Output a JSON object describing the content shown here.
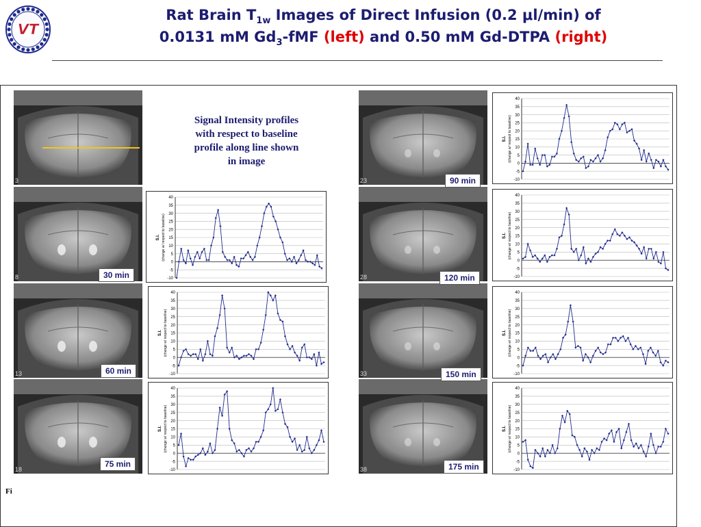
{
  "header": {
    "title_line1_pre": "Rat Brain T",
    "title_line1_sub": "1w",
    "title_line1_post": " Images of Direct Infusion (0.2 μl/min) of",
    "title_line2_a": "0.0131 mM Gd",
    "title_line2_sub": "3",
    "title_line2_b": "-fMF ",
    "title_line2_left": "(left)",
    "title_line2_c": " and 0.50 mM Gd-DTPA ",
    "title_line2_right": "(right)",
    "logo_text": "VT"
  },
  "description": "Signal Intensity profiles with respect to baseline profile along line shown in image",
  "figure_caption_prefix": "Fi",
  "colors": {
    "title": "#1c1c70",
    "accent_red": "#e00000",
    "series": "#1f2a8c",
    "profile_line": "#f5c518"
  },
  "left_images": [
    {
      "slice": "3",
      "time": ""
    },
    {
      "slice": "8",
      "time": "30 min"
    },
    {
      "slice": "13",
      "time": "60 min"
    },
    {
      "slice": "18",
      "time": "75 min"
    }
  ],
  "right_images": [
    {
      "slice": "23",
      "time": "90 min"
    },
    {
      "slice": "28",
      "time": "120 min"
    },
    {
      "slice": "33",
      "time": "150 min"
    },
    {
      "slice": "38",
      "time": "175 min"
    }
  ],
  "chart_data": [
    {
      "type": "line",
      "time": "30 min",
      "ylabel": "S.I.",
      "ylabel2": "(change w/ respect to baseline)",
      "ylim": [
        -10,
        40
      ],
      "yticks": [
        40,
        35,
        30,
        25,
        20,
        15,
        10,
        5,
        0,
        -5,
        -10
      ],
      "values": [
        -10,
        0,
        8,
        1,
        -1,
        7,
        2,
        -2,
        3,
        6,
        2,
        6,
        8,
        1,
        1,
        10,
        15,
        27,
        32,
        22,
        6,
        3,
        1,
        1,
        -1,
        3,
        -2,
        -3,
        2,
        2,
        4,
        6,
        3,
        1,
        3,
        10,
        15,
        22,
        30,
        34,
        36,
        34,
        28,
        25,
        20,
        15,
        12,
        5,
        1,
        2,
        0,
        3,
        -1,
        1,
        4,
        7,
        1,
        0,
        0,
        -1,
        -2,
        4,
        -3,
        -4
      ]
    },
    {
      "type": "line",
      "time": "60 min",
      "ylabel": "S.I.",
      "ylabel2": "(change w/ respect to baseline)",
      "ylim": [
        -10,
        40
      ],
      "yticks": [
        40,
        35,
        30,
        25,
        20,
        15,
        10,
        5,
        0,
        -5,
        -10
      ],
      "values": [
        -5,
        0,
        4,
        5,
        2,
        1,
        2,
        2,
        -1,
        5,
        -2,
        2,
        10,
        2,
        1,
        13,
        18,
        26,
        38,
        30,
        6,
        3,
        6,
        0,
        1,
        -1,
        0,
        1,
        1,
        2,
        1,
        -1,
        5,
        5,
        9,
        17,
        26,
        40,
        38,
        35,
        38,
        27,
        23,
        22,
        13,
        8,
        5,
        7,
        3,
        1,
        -2,
        6,
        8,
        0,
        0,
        -1,
        2,
        -5,
        3,
        -4,
        -3
      ]
    },
    {
      "type": "line",
      "time": "75 min",
      "ylabel": "S.I.",
      "ylabel2": "(change w/ respect to baseline)",
      "ylim": [
        -10,
        40
      ],
      "yticks": [
        40,
        35,
        30,
        25,
        20,
        15,
        10,
        5,
        0,
        -5,
        -10
      ],
      "values": [
        5,
        12,
        -2,
        -8,
        -3,
        -4,
        -4,
        -2,
        -1,
        0,
        3,
        -1,
        1,
        6,
        0,
        2,
        15,
        28,
        23,
        36,
        38,
        15,
        8,
        6,
        1,
        2,
        0,
        -2,
        2,
        3,
        1,
        3,
        7,
        7,
        10,
        14,
        25,
        27,
        30,
        40,
        26,
        27,
        33,
        25,
        18,
        16,
        10,
        7,
        9,
        2,
        5,
        1,
        2,
        10,
        3,
        0,
        2,
        5,
        8,
        14,
        7
      ]
    },
    {
      "type": "line",
      "time": "90 min",
      "ylabel": "S.I.",
      "ylabel2": "(change w/ respect to baseline)",
      "ylim": [
        -10,
        40
      ],
      "yticks": [
        40,
        35,
        30,
        25,
        20,
        15,
        10,
        5,
        0,
        -5,
        -10
      ],
      "values": [
        -5,
        1,
        12,
        -1,
        -1,
        9,
        3,
        -1,
        5,
        5,
        -2,
        -1,
        4,
        4,
        6,
        15,
        20,
        28,
        36,
        29,
        13,
        6,
        2,
        1,
        3,
        4,
        -3,
        -2,
        2,
        1,
        3,
        5,
        1,
        3,
        8,
        16,
        20,
        21,
        25,
        24,
        21,
        24,
        25,
        19,
        20,
        21,
        14,
        12,
        9,
        2,
        8,
        1,
        6,
        2,
        -3,
        2,
        1,
        -2,
        2,
        -2,
        -4
      ]
    },
    {
      "type": "line",
      "time": "120 min",
      "ylabel": "S.I.",
      "ylabel2": "(change w/ respect to baseline)",
      "ylim": [
        -10,
        40
      ],
      "yticks": [
        40,
        35,
        30,
        25,
        20,
        15,
        10,
        5,
        0,
        -5,
        -10
      ],
      "values": [
        1,
        2,
        10,
        6,
        2,
        3,
        1,
        -1,
        1,
        3,
        -1,
        2,
        3,
        3,
        7,
        14,
        15,
        22,
        32,
        28,
        7,
        5,
        7,
        0,
        3,
        8,
        -2,
        1,
        -1,
        2,
        4,
        5,
        8,
        7,
        10,
        12,
        12,
        16,
        19,
        16,
        15,
        17,
        15,
        13,
        14,
        12,
        11,
        9,
        7,
        4,
        8,
        1,
        7,
        7,
        1,
        5,
        -1,
        -2,
        5,
        -5,
        -6
      ]
    },
    {
      "type": "line",
      "time": "150 min",
      "ylabel": "S.I.",
      "ylabel2": "(change w/ respect to baseline)",
      "ylim": [
        -10,
        40
      ],
      "yticks": [
        40,
        35,
        30,
        25,
        20,
        15,
        10,
        5,
        0,
        -5,
        -10
      ],
      "values": [
        -5,
        1,
        6,
        4,
        4,
        6,
        1,
        -1,
        1,
        2,
        -3,
        0,
        2,
        -1,
        2,
        5,
        12,
        14,
        22,
        32,
        22,
        6,
        7,
        6,
        -2,
        2,
        0,
        -3,
        1,
        4,
        6,
        3,
        2,
        3,
        8,
        8,
        12,
        12,
        10,
        12,
        13,
        10,
        12,
        8,
        5,
        7,
        5,
        6,
        2,
        -4,
        4,
        6,
        3,
        1,
        4,
        -3,
        -5,
        -2,
        -3
      ]
    },
    {
      "type": "line",
      "time": "175 min",
      "ylabel": "S.I.",
      "ylabel2": "(change w/ respect to baseline)",
      "ylim": [
        -10,
        40
      ],
      "yticks": [
        40,
        35,
        30,
        25,
        20,
        15,
        10,
        5,
        0,
        -5,
        -10
      ],
      "values": [
        7,
        8,
        -4,
        -8,
        -9,
        2,
        0,
        -2,
        3,
        -2,
        2,
        0,
        5,
        0,
        3,
        15,
        23,
        19,
        26,
        24,
        11,
        10,
        5,
        2,
        -2,
        3,
        1,
        -4,
        2,
        0,
        3,
        2,
        7,
        9,
        8,
        12,
        14,
        7,
        13,
        15,
        3,
        8,
        13,
        18,
        8,
        4,
        6,
        3,
        5,
        1,
        -2,
        4,
        12,
        5,
        0,
        4,
        4,
        7,
        15,
        12
      ]
    }
  ]
}
